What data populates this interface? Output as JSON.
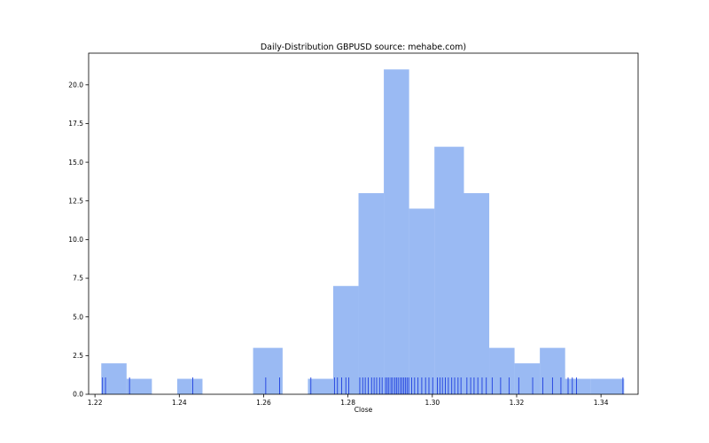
{
  "chart_data": {
    "type": "bar",
    "title": "Daily-Distribution GBPUSD source: mehabe.com)",
    "xlabel": "Close",
    "ylabel": "",
    "xlim": [
      1.2185,
      1.3488
    ],
    "ylim": [
      0,
      22.05
    ],
    "grid": false,
    "bar_color": "#6495ED",
    "rug_color": "#1f3fdf",
    "xticks": [
      "1.22",
      "1.24",
      "1.26",
      "1.28",
      "1.30",
      "1.32",
      "1.34"
    ],
    "yticks": [
      "0.0",
      "2.5",
      "5.0",
      "7.5",
      "10.0",
      "12.5",
      "15.0",
      "17.5",
      "20.0"
    ],
    "bins": [
      {
        "x0": 1.2215,
        "x1": 1.2275,
        "count": 2
      },
      {
        "x0": 1.2275,
        "x1": 1.2335,
        "count": 1
      },
      {
        "x0": 1.2335,
        "x1": 1.2395,
        "count": 0
      },
      {
        "x0": 1.2395,
        "x1": 1.2455,
        "count": 1
      },
      {
        "x0": 1.2455,
        "x1": 1.2515,
        "count": 0
      },
      {
        "x0": 1.2515,
        "x1": 1.2575,
        "count": 0
      },
      {
        "x0": 1.2575,
        "x1": 1.2645,
        "count": 3
      },
      {
        "x0": 1.2645,
        "x1": 1.2705,
        "count": 0
      },
      {
        "x0": 1.2705,
        "x1": 1.2765,
        "count": 1
      },
      {
        "x0": 1.2765,
        "x1": 1.2825,
        "count": 7
      },
      {
        "x0": 1.2825,
        "x1": 1.2885,
        "count": 13
      },
      {
        "x0": 1.2885,
        "x1": 1.2945,
        "count": 21
      },
      {
        "x0": 1.2945,
        "x1": 1.3005,
        "count": 12
      },
      {
        "x0": 1.3005,
        "x1": 1.3075,
        "count": 16
      },
      {
        "x0": 1.3075,
        "x1": 1.3135,
        "count": 13
      },
      {
        "x0": 1.3135,
        "x1": 1.3195,
        "count": 3
      },
      {
        "x0": 1.3195,
        "x1": 1.3255,
        "count": 2
      },
      {
        "x0": 1.3255,
        "x1": 1.3315,
        "count": 3
      },
      {
        "x0": 1.3315,
        "x1": 1.3375,
        "count": 1
      },
      {
        "x0": 1.3375,
        "x1": 1.3455,
        "count": 1
      }
    ],
    "rug": [
      1.2218,
      1.2225,
      1.2282,
      1.2432,
      1.2605,
      1.2638,
      1.2712,
      1.2768,
      1.2775,
      1.2785,
      1.2795,
      1.2802,
      1.2828,
      1.2835,
      1.2841,
      1.2848,
      1.2856,
      1.2862,
      1.2868,
      1.2875,
      1.2881,
      1.2889,
      1.2893,
      1.2897,
      1.2902,
      1.2906,
      1.2911,
      1.2915,
      1.2919,
      1.2924,
      1.2928,
      1.2932,
      1.2936,
      1.294,
      1.2944,
      1.2951,
      1.2958,
      1.2966,
      1.2975,
      1.2984,
      1.2992,
      1.3001,
      1.3012,
      1.3018,
      1.3024,
      1.3031,
      1.3038,
      1.3046,
      1.3053,
      1.3061,
      1.3068,
      1.3082,
      1.3091,
      1.3099,
      1.3108,
      1.3118,
      1.3128,
      1.3142,
      1.3162,
      1.3182,
      1.3205,
      1.3238,
      1.3262,
      1.3285,
      1.3305,
      1.3322,
      1.3332,
      1.3342,
      1.3452
    ]
  }
}
